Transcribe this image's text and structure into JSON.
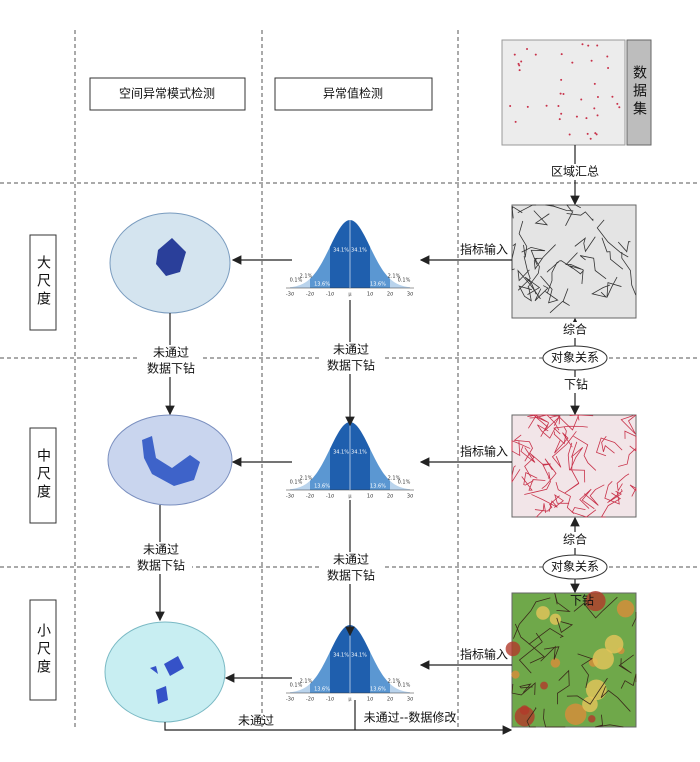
{
  "columns": {
    "spatial": "空间异常模式检测",
    "outlier": "异常值检测",
    "dataset": "数据集"
  },
  "scales": [
    "大尺度",
    "中尺度",
    "小尺度"
  ],
  "edges": {
    "aggregate": "区域汇总",
    "index_input": "指标输入",
    "combine": "综合",
    "relation": "对象关系",
    "drill": "下钻",
    "fail": "未通过",
    "fail_drill": [
      "未通过",
      "数据下钻"
    ],
    "fail_fix": "未通过--数据修改"
  },
  "curve": {
    "percents": [
      "0.1%",
      "2.1%",
      "13.6%",
      "34.1%",
      "34.1%",
      "13.6%",
      "2.1%",
      "0.1%"
    ],
    "axis": [
      "-3σ",
      "-2σ",
      "-1σ",
      "μ",
      "1σ",
      "2σ",
      "3σ"
    ]
  }
}
